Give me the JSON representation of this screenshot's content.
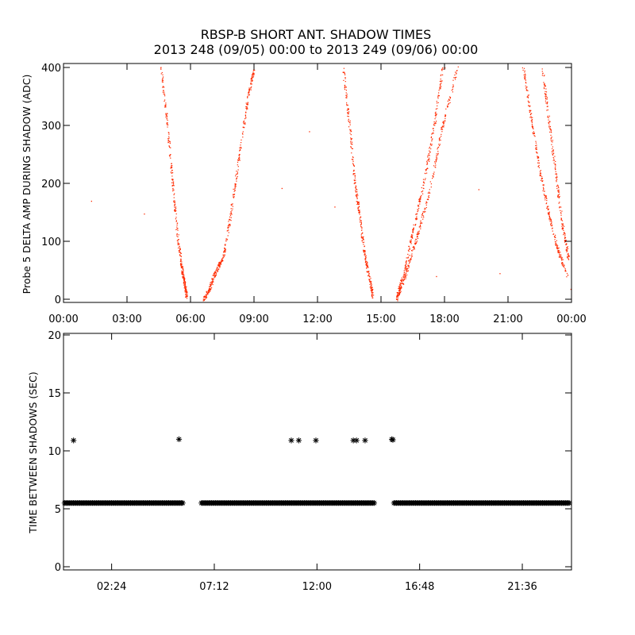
{
  "figure": {
    "title_line1": "RBSP-B SHORT ANT. SHADOW TIMES",
    "title_line2": "2013 248 (09/05) 00:00 to 2013 249 (09/06) 00:00"
  },
  "colors": {
    "red_points": "#ff2a00",
    "black_points": "#000000",
    "axes": "#000000",
    "background": "#ffffff"
  },
  "chart_data": [
    {
      "id": "top",
      "type": "scatter",
      "title": "",
      "ylabel": "Probe 5 DELTA AMP DURING SHADOW (ADC)",
      "xlabel": "",
      "xlim_hours": [
        0,
        24
      ],
      "ylim": [
        0,
        400
      ],
      "x_ticks": [
        "00:00",
        "03:00",
        "06:00",
        "09:00",
        "12:00",
        "15:00",
        "18:00",
        "21:00",
        "00:00"
      ],
      "x_tick_hours": [
        0,
        3,
        6,
        9,
        12,
        15,
        18,
        21,
        24
      ],
      "y_ticks": [
        "0",
        "100",
        "200",
        "300",
        "400"
      ],
      "y_tick_values": [
        0,
        100,
        200,
        300,
        400
      ],
      "point_color": "#ff2a00",
      "traces": [
        {
          "x": [
            4.6,
            4.9,
            5.15,
            5.4,
            5.6,
            5.72,
            5.8
          ],
          "y": [
            400,
            300,
            200,
            100,
            50,
            25,
            5
          ]
        },
        {
          "x": [
            6.6,
            6.9,
            7.2,
            7.55,
            7.9,
            8.3,
            8.7,
            9.0
          ],
          "y": [
            0,
            20,
            50,
            75,
            150,
            250,
            350,
            400
          ]
        },
        {
          "x": [
            13.2,
            13.5,
            13.75,
            13.95,
            14.2,
            14.45,
            14.6
          ],
          "y": [
            400,
            300,
            200,
            150,
            80,
            35,
            5
          ]
        },
        {
          "x": [
            15.7,
            16.1,
            16.5,
            17.0,
            17.5,
            17.9
          ],
          "y": [
            0,
            50,
            120,
            200,
            300,
            400
          ]
        },
        {
          "x": [
            15.75,
            16.2,
            16.7,
            17.3,
            17.9,
            18.6
          ],
          "y": [
            0,
            50,
            110,
            190,
            300,
            400
          ]
        },
        {
          "x": [
            21.7,
            22.1,
            22.5,
            22.9,
            23.3,
            23.8
          ],
          "y": [
            400,
            310,
            220,
            150,
            90,
            40
          ]
        },
        {
          "x": [
            22.6,
            22.95,
            23.3,
            23.6,
            23.85
          ],
          "y": [
            400,
            300,
            200,
            120,
            70
          ]
        }
      ],
      "isolated_points": [
        {
          "x": 1.3,
          "y": 170
        },
        {
          "x": 3.8,
          "y": 148
        },
        {
          "x": 10.3,
          "y": 192
        },
        {
          "x": 11.6,
          "y": 290
        },
        {
          "x": 12.8,
          "y": 160
        },
        {
          "x": 17.6,
          "y": 40
        },
        {
          "x": 18.0,
          "y": 400
        },
        {
          "x": 19.6,
          "y": 190
        },
        {
          "x": 20.6,
          "y": 45
        },
        {
          "x": 23.95,
          "y": 18
        }
      ]
    },
    {
      "id": "bottom",
      "type": "scatter",
      "title": "",
      "ylabel": "TIME BETWEEN SHADOWS (SEC)",
      "xlabel": "",
      "xlim_hours": [
        0.15,
        23.9
      ],
      "ylim": [
        0,
        20
      ],
      "x_ticks": [
        "02:24",
        "07:12",
        "12:00",
        "16:48",
        "21:36"
      ],
      "x_tick_hours": [
        2.4,
        7.2,
        12.0,
        16.8,
        21.6
      ],
      "y_ticks": [
        "0",
        "5",
        "10",
        "15",
        "20"
      ],
      "y_tick_values": [
        0,
        5,
        10,
        15,
        20
      ],
      "marker": "asterisk",
      "point_color": "#000000",
      "baseline_value": 5.5,
      "baseline_segments_hours": [
        [
          0.2,
          5.75
        ],
        [
          6.6,
          14.7
        ],
        [
          15.6,
          23.8
        ]
      ],
      "outliers": [
        {
          "x": 0.62,
          "y": 10.9
        },
        {
          "x": 5.55,
          "y": 11.0
        },
        {
          "x": 10.8,
          "y": 10.9
        },
        {
          "x": 11.15,
          "y": 10.9
        },
        {
          "x": 11.95,
          "y": 10.9
        },
        {
          "x": 13.7,
          "y": 10.9
        },
        {
          "x": 13.85,
          "y": 10.9
        },
        {
          "x": 14.25,
          "y": 10.9
        },
        {
          "x": 15.5,
          "y": 11.0
        },
        {
          "x": 15.55,
          "y": 10.95
        }
      ]
    }
  ]
}
